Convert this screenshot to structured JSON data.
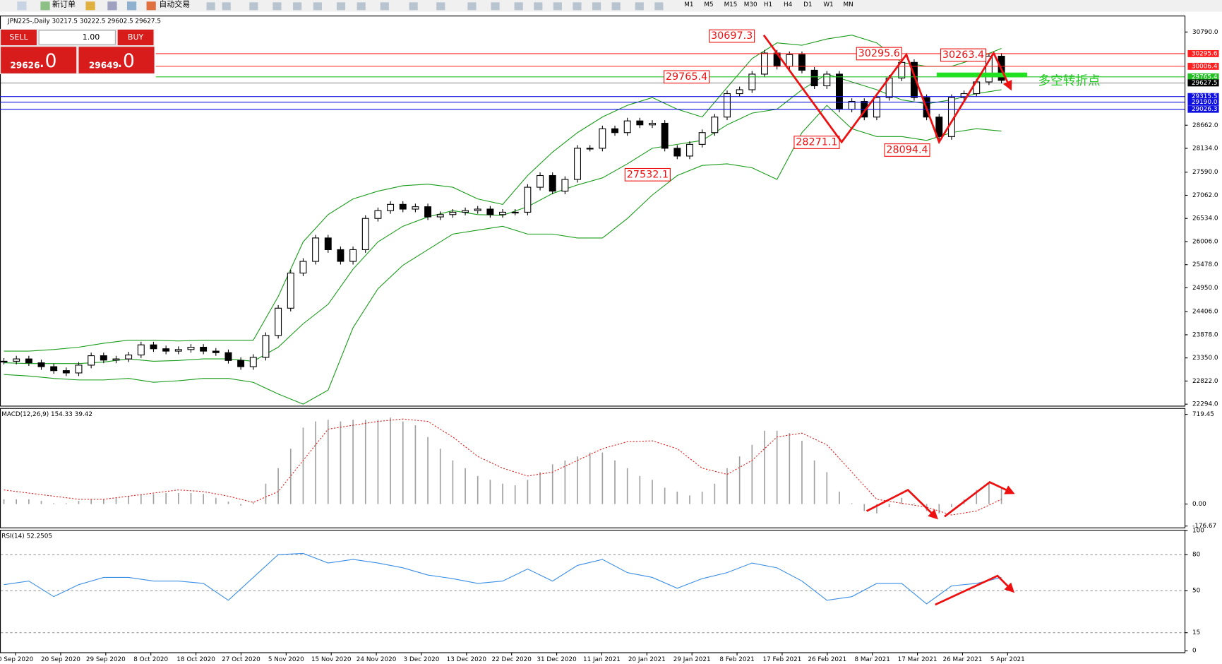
{
  "toolbar": {
    "new_order": "新订单",
    "auto_trading": "自动交易",
    "timeframes": [
      "M1",
      "M5",
      "M15",
      "M30",
      "H1",
      "H4",
      "D1",
      "W1",
      "MN"
    ]
  },
  "trade_panel": {
    "sell": "SELL",
    "buy": "BUY",
    "lot": "1.00",
    "sell_price": "29626",
    "sell_frac": ".0",
    "buy_price": "29649",
    "buy_frac": ".0"
  },
  "chart_data": [
    {
      "type": "candlestick",
      "title": "JPN225-,Daily  30217.5 30222.5 29602.5 29627.5",
      "color": "#000000",
      "band_color": "#1a9c1a",
      "values": [
        23274,
        23327,
        23238,
        23150,
        23060,
        23007,
        23185,
        23400,
        23300,
        23327,
        23417,
        23648,
        23559,
        23505,
        23541,
        23594,
        23505,
        23470,
        23292,
        23150,
        23363,
        23862,
        24485,
        25287,
        25554,
        26088,
        25821,
        25554,
        25821,
        26534,
        26712,
        26855,
        26747,
        26801,
        26569,
        26622,
        26676,
        26712,
        26747,
        26622,
        26676,
        26676,
        27246,
        27513,
        27157,
        27424,
        28136,
        28136,
        28581,
        28493,
        28760,
        28670,
        28706,
        28136,
        27958,
        28225,
        28493,
        28848,
        29383,
        29472,
        29828,
        30309,
        30006,
        30274,
        29917,
        29561,
        29828,
        29027,
        29205,
        28848,
        29294,
        29739,
        30096,
        29294,
        28848,
        28403,
        29294,
        29383,
        29650,
        30238,
        29686
      ],
      "bands": {
        "upper": [
          23506,
          23506,
          23541,
          23595,
          23684,
          23755,
          23755,
          23737,
          23755,
          23755,
          23755,
          24752,
          26000,
          26622,
          26979,
          27157,
          27281,
          27317,
          27246,
          26979,
          26854,
          27513,
          28047,
          28493,
          28849,
          29116,
          29294,
          29027,
          28849,
          29525,
          30184,
          30541,
          30487,
          30630,
          30719,
          30541,
          30095,
          30006,
          30006,
          30184,
          30416
        ],
        "middle": [
          23239,
          23221,
          23221,
          23221,
          23256,
          23328,
          23274,
          23292,
          23328,
          23328,
          23274,
          23595,
          24129,
          24574,
          25376,
          25999,
          26355,
          26569,
          26712,
          26622,
          26605,
          26801,
          27103,
          27299,
          27460,
          27780,
          28136,
          28225,
          28314,
          28671,
          28938,
          29027,
          29472,
          29828,
          29650,
          29472,
          29241,
          29151,
          29241,
          29383,
          29472
        ],
        "lower": [
          22971,
          22936,
          22882,
          22847,
          22847,
          22882,
          22793,
          22829,
          22882,
          22882,
          22793,
          22526,
          22295,
          22615,
          24040,
          24930,
          25465,
          25821,
          26177,
          26266,
          26355,
          26177,
          26177,
          26088,
          26088,
          26533,
          27068,
          27513,
          27744,
          27780,
          27691,
          27424,
          28493,
          29116,
          28582,
          28403,
          28403,
          28314,
          28493,
          28582,
          28528
        ]
      },
      "ylim": [
        22294,
        30790
      ],
      "yticks": [
        {
          "value": 30790,
          "label": "30790.0"
        },
        {
          "value": 28662,
          "label": "28662.0"
        },
        {
          "value": 28134,
          "label": "28134.0"
        },
        {
          "value": 27590,
          "label": "27590.0"
        },
        {
          "value": 27062,
          "label": "27062.0"
        },
        {
          "value": 26534,
          "label": "26534.0"
        },
        {
          "value": 26006,
          "label": "26006.0"
        },
        {
          "value": 25478,
          "label": "25478.0"
        },
        {
          "value": 24950,
          "label": "24950.0"
        },
        {
          "value": 24406,
          "label": "24406.0"
        },
        {
          "value": 23878,
          "label": "23878.0"
        },
        {
          "value": 23350,
          "label": "23350.0"
        },
        {
          "value": 22822,
          "label": "22822.0"
        },
        {
          "value": 22294,
          "label": "22294.0"
        }
      ],
      "price_lines": [
        {
          "value": 30295.6,
          "color": "#ff2020"
        },
        {
          "value": 30006.4,
          "color": "#ff2020"
        },
        {
          "value": 29765.4,
          "color": "#22c022"
        },
        {
          "value": 29627.5,
          "color": "#000000"
        },
        {
          "value": 29315.5,
          "color": "#1010e0"
        },
        {
          "value": {
            "value": 29190,
            "label": "29190.0"
          },
          "color": "#1010e0"
        },
        {
          "value": 29026.3,
          "color": "#1010e0"
        }
      ],
      "peak_labels": [
        30697.3,
        29765.4,
        30295.6,
        30263.4,
        28271.1,
        28094.4,
        27532.1
      ],
      "annotation": "多空转折点"
    },
    {
      "type": "macd",
      "title": "MACD(12,26,9) 154.33 39.42",
      "color": "#a0a0a0",
      "signal_color": "#e02020",
      "values": [
        38,
        38,
        38,
        25,
        6,
        6,
        25,
        38,
        38,
        50,
        63,
        75,
        81,
        88,
        88,
        88,
        81,
        50,
        19,
        -13,
        13,
        163,
        288,
        444,
        613,
        663,
        676,
        663,
        676,
        676,
        676,
        694,
        663,
        632,
        538,
        444,
        350,
        288,
        225,
        194,
        163,
        150,
        194,
        256,
        319,
        350,
        382,
        413,
        413,
        350,
        288,
        225,
        194,
        131,
        100,
        69,
        100,
        163,
        288,
        382,
        475,
        588,
        588,
        569,
        507,
        350,
        256,
        100,
        6,
        -56,
        -75,
        -25,
        50,
        6,
        -56,
        -75,
        -25,
        38,
        113,
        175,
        131
      ],
      "signal": [
        113,
        88,
        63,
        38,
        38,
        63,
        88,
        113,
        100,
        63,
        13,
        100,
        350,
        601,
        632,
        663,
        682,
        663,
        538,
        382,
        288,
        225,
        256,
        350,
        444,
        500,
        507,
        444,
        288,
        238,
        350,
        538,
        569,
        475,
        256,
        38,
        6,
        -25,
        -88,
        -56,
        38
      ],
      "ylim": [
        -188,
        770
      ],
      "yticks": [
        719.45,
        {
          "value": 0,
          "label": "0.00"
        },
        -176.67
      ]
    },
    {
      "type": "line",
      "title": "RSI(14) 52.2505",
      "color": "#3a8ee6",
      "values": [
        55,
        58,
        45,
        55,
        61,
        61,
        58,
        58,
        56,
        42,
        61,
        80,
        81,
        73,
        76,
        73,
        69,
        63,
        60,
        56,
        58,
        68,
        58,
        71,
        76,
        65,
        61,
        52,
        60,
        65,
        73,
        69,
        58,
        42,
        45,
        56,
        56,
        39,
        54,
        56,
        61
      ],
      "ylim": [
        0,
        100
      ],
      "yticks": [
        100,
        80,
        50,
        15,
        0
      ],
      "levels": [
        80,
        50,
        15
      ],
      "xtick_labels": [
        "0 Sep 2020",
        "20 Sep 2020",
        "29 Sep 2020",
        "8 Oct 2020",
        "18 Oct 2020",
        "27 Oct 2020",
        "5 Nov 2020",
        "15 Nov 2020",
        "24 Nov 2020",
        "3 Dec 2020",
        "13 Dec 2020",
        "22 Dec 2020",
        "31 Dec 2020",
        "11 Jan 2021",
        "20 Jan 2021",
        "29 Jan 2021",
        "8 Feb 2021",
        "17 Feb 2021",
        "26 Feb 2021",
        "8 Mar 2021",
        "17 Mar 2021",
        "26 Mar 2021",
        "5 Apr 2021"
      ]
    }
  ]
}
